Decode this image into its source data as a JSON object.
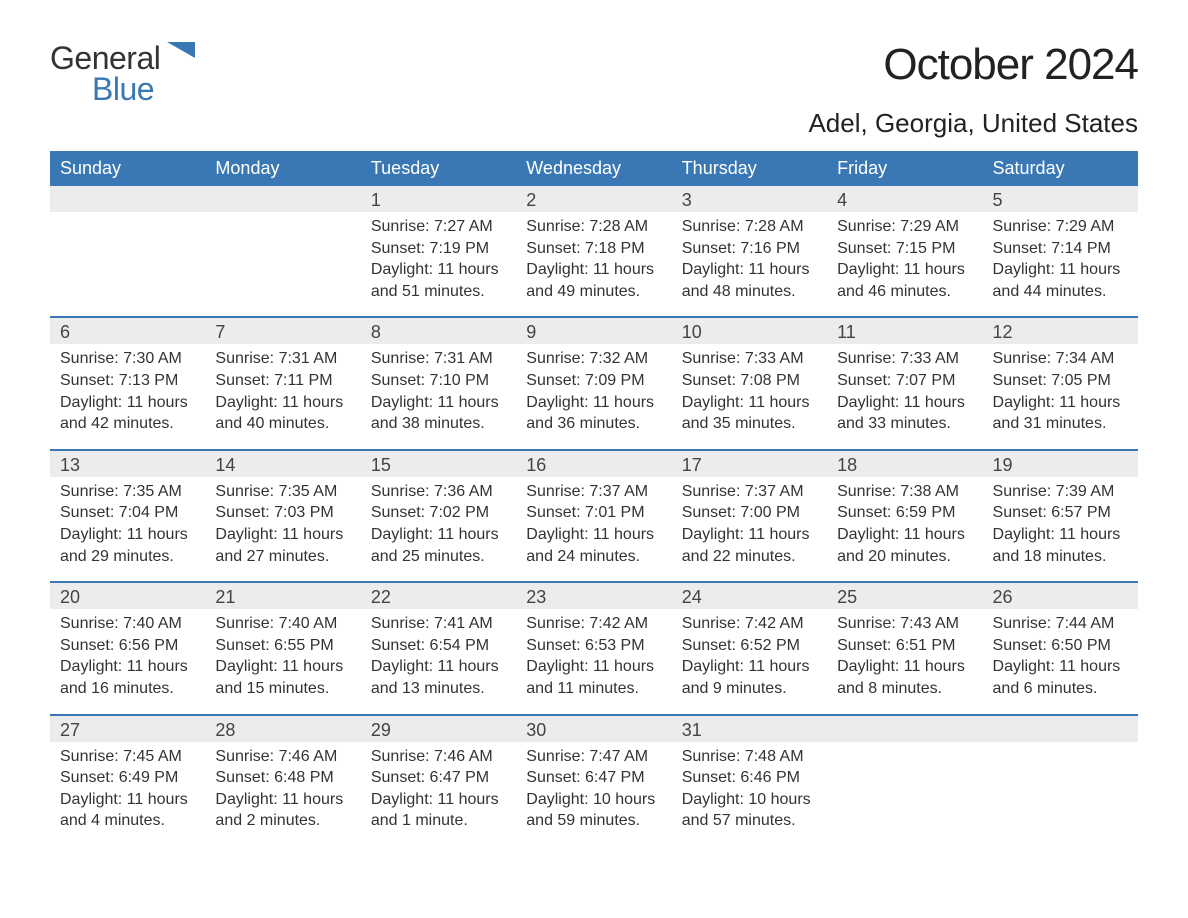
{
  "logo": {
    "text1": "General",
    "text2": "Blue",
    "icon_color": "#3a78b5"
  },
  "title": "October 2024",
  "location": "Adel, Georgia, United States",
  "colors": {
    "header_bg": "#3a78b5",
    "header_text": "#ffffff",
    "daynum_bg": "#ececec",
    "text": "#333333",
    "rule": "#3a78b5"
  },
  "day_names": [
    "Sunday",
    "Monday",
    "Tuesday",
    "Wednesday",
    "Thursday",
    "Friday",
    "Saturday"
  ],
  "weeks": [
    [
      null,
      null,
      {
        "n": "1",
        "sr": "7:27 AM",
        "ss": "7:19 PM",
        "dl": "11 hours and 51 minutes."
      },
      {
        "n": "2",
        "sr": "7:28 AM",
        "ss": "7:18 PM",
        "dl": "11 hours and 49 minutes."
      },
      {
        "n": "3",
        "sr": "7:28 AM",
        "ss": "7:16 PM",
        "dl": "11 hours and 48 minutes."
      },
      {
        "n": "4",
        "sr": "7:29 AM",
        "ss": "7:15 PM",
        "dl": "11 hours and 46 minutes."
      },
      {
        "n": "5",
        "sr": "7:29 AM",
        "ss": "7:14 PM",
        "dl": "11 hours and 44 minutes."
      }
    ],
    [
      {
        "n": "6",
        "sr": "7:30 AM",
        "ss": "7:13 PM",
        "dl": "11 hours and 42 minutes."
      },
      {
        "n": "7",
        "sr": "7:31 AM",
        "ss": "7:11 PM",
        "dl": "11 hours and 40 minutes."
      },
      {
        "n": "8",
        "sr": "7:31 AM",
        "ss": "7:10 PM",
        "dl": "11 hours and 38 minutes."
      },
      {
        "n": "9",
        "sr": "7:32 AM",
        "ss": "7:09 PM",
        "dl": "11 hours and 36 minutes."
      },
      {
        "n": "10",
        "sr": "7:33 AM",
        "ss": "7:08 PM",
        "dl": "11 hours and 35 minutes."
      },
      {
        "n": "11",
        "sr": "7:33 AM",
        "ss": "7:07 PM",
        "dl": "11 hours and 33 minutes."
      },
      {
        "n": "12",
        "sr": "7:34 AM",
        "ss": "7:05 PM",
        "dl": "11 hours and 31 minutes."
      }
    ],
    [
      {
        "n": "13",
        "sr": "7:35 AM",
        "ss": "7:04 PM",
        "dl": "11 hours and 29 minutes."
      },
      {
        "n": "14",
        "sr": "7:35 AM",
        "ss": "7:03 PM",
        "dl": "11 hours and 27 minutes."
      },
      {
        "n": "15",
        "sr": "7:36 AM",
        "ss": "7:02 PM",
        "dl": "11 hours and 25 minutes."
      },
      {
        "n": "16",
        "sr": "7:37 AM",
        "ss": "7:01 PM",
        "dl": "11 hours and 24 minutes."
      },
      {
        "n": "17",
        "sr": "7:37 AM",
        "ss": "7:00 PM",
        "dl": "11 hours and 22 minutes."
      },
      {
        "n": "18",
        "sr": "7:38 AM",
        "ss": "6:59 PM",
        "dl": "11 hours and 20 minutes."
      },
      {
        "n": "19",
        "sr": "7:39 AM",
        "ss": "6:57 PM",
        "dl": "11 hours and 18 minutes."
      }
    ],
    [
      {
        "n": "20",
        "sr": "7:40 AM",
        "ss": "6:56 PM",
        "dl": "11 hours and 16 minutes."
      },
      {
        "n": "21",
        "sr": "7:40 AM",
        "ss": "6:55 PM",
        "dl": "11 hours and 15 minutes."
      },
      {
        "n": "22",
        "sr": "7:41 AM",
        "ss": "6:54 PM",
        "dl": "11 hours and 13 minutes."
      },
      {
        "n": "23",
        "sr": "7:42 AM",
        "ss": "6:53 PM",
        "dl": "11 hours and 11 minutes."
      },
      {
        "n": "24",
        "sr": "7:42 AM",
        "ss": "6:52 PM",
        "dl": "11 hours and 9 minutes."
      },
      {
        "n": "25",
        "sr": "7:43 AM",
        "ss": "6:51 PM",
        "dl": "11 hours and 8 minutes."
      },
      {
        "n": "26",
        "sr": "7:44 AM",
        "ss": "6:50 PM",
        "dl": "11 hours and 6 minutes."
      }
    ],
    [
      {
        "n": "27",
        "sr": "7:45 AM",
        "ss": "6:49 PM",
        "dl": "11 hours and 4 minutes."
      },
      {
        "n": "28",
        "sr": "7:46 AM",
        "ss": "6:48 PM",
        "dl": "11 hours and 2 minutes."
      },
      {
        "n": "29",
        "sr": "7:46 AM",
        "ss": "6:47 PM",
        "dl": "11 hours and 1 minute."
      },
      {
        "n": "30",
        "sr": "7:47 AM",
        "ss": "6:47 PM",
        "dl": "10 hours and 59 minutes."
      },
      {
        "n": "31",
        "sr": "7:48 AM",
        "ss": "6:46 PM",
        "dl": "10 hours and 57 minutes."
      },
      null,
      null
    ]
  ],
  "labels": {
    "sunrise": "Sunrise: ",
    "sunset": "Sunset: ",
    "daylight": "Daylight: "
  }
}
